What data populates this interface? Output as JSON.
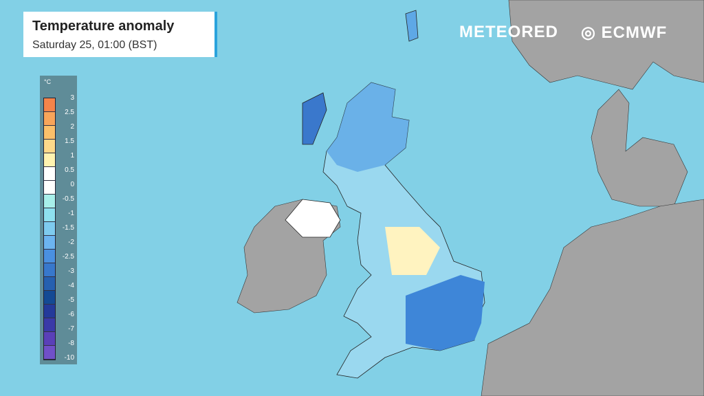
{
  "header": {
    "title": "Temperature anomaly",
    "subtitle": "Saturday 25, 01:00 (BST)"
  },
  "logos": {
    "meteored": "METEORED",
    "ecmwf": "ECMWF"
  },
  "legend": {
    "unit": "°C",
    "labels": [
      "3",
      "2.5",
      "2",
      "1.5",
      "1",
      "0.5",
      "0",
      "-0.5",
      "-1",
      "-1.5",
      "-2",
      "-2.5",
      "-3",
      "-4",
      "-5",
      "-6",
      "-7",
      "-8",
      "-10"
    ],
    "colors": [
      "#f4844a",
      "#f8a55a",
      "#fbc06a",
      "#fdd98a",
      "#fff3b0",
      "#ffffff",
      "#ffffff",
      "#a8efea",
      "#8ee0ef",
      "#7ecbef",
      "#6cb4f0",
      "#4a90e0",
      "#3878cc",
      "#2660b0",
      "#144a94",
      "#243a9a",
      "#3a3aa8",
      "#5a40b8",
      "#7050c8"
    ]
  },
  "colors": {
    "sea": "#82d0e6",
    "land": "#a3a3a3",
    "accent": "#2aa3dc"
  }
}
